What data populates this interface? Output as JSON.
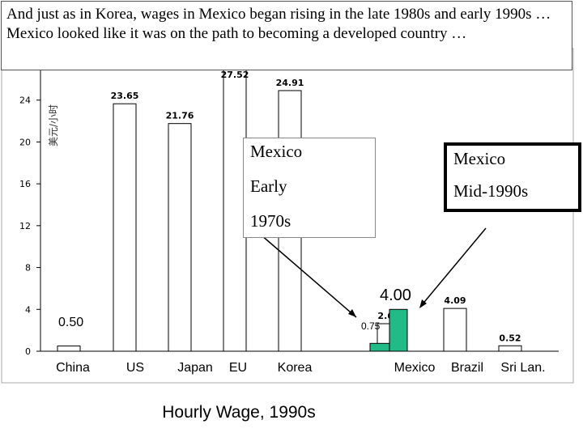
{
  "header": {
    "text": "And just as in Korea, wages in Mexico began rising in the late 1980s and early 1990s … Mexico looked like it was on the path to becoming a developed country …"
  },
  "callouts": {
    "early": {
      "line1": "Mexico",
      "line2": "Early",
      "line3": "1970s"
    },
    "mid": {
      "line1": "Mexico",
      "line2": "Mid-1990s"
    }
  },
  "annotations": {
    "china_label": "0.50",
    "mexico_early_label": "0.75",
    "mexico_mid_label": "4.00"
  },
  "caption": "Hourly Wage, 1990s",
  "colors": {
    "bar_fill": "#ffffff",
    "bar_stroke": "#000000",
    "mexico_fill": "#22bb88"
  },
  "chart_data": {
    "type": "bar",
    "ylabel": "美元/小时",
    "ylim": [
      0,
      28
    ],
    "yticks": [
      0,
      4,
      8,
      12,
      16,
      20,
      24
    ],
    "categories": [
      "China",
      "US",
      "Japan",
      "EU",
      "Korea",
      "Mexico",
      "Brazil",
      "Sri Lan."
    ],
    "values": [
      0.5,
      23.65,
      21.76,
      27.52,
      24.91,
      2.63,
      4.09,
      0.52
    ],
    "value_labels": [
      "",
      "23.65",
      "21.76",
      "27.52",
      "24.91",
      "2.63",
      "4.09",
      "0.52"
    ],
    "mexico_overlay": {
      "values": [
        0.75,
        4.0
      ]
    }
  }
}
